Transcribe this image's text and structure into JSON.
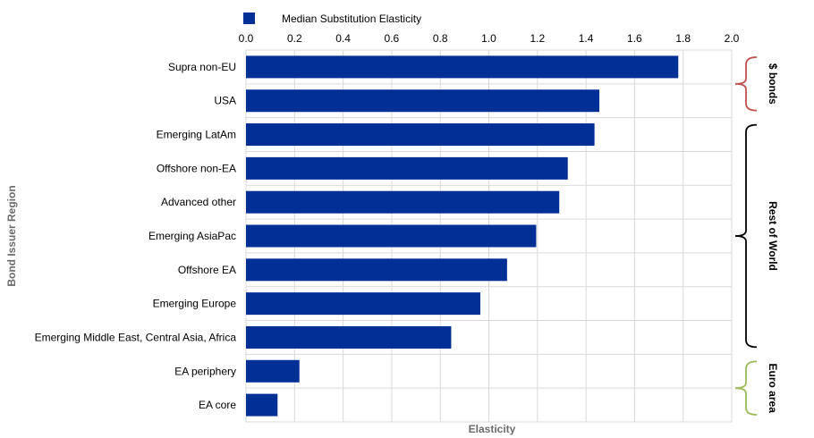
{
  "chart_data": {
    "type": "bar",
    "orientation": "horizontal",
    "xlabel": "Elasticity",
    "ylabel": "Bond Issuer Region",
    "xlim": [
      0,
      2.0
    ],
    "x_ticks": [
      "0.0",
      "0.2",
      "0.4",
      "0.6",
      "0.8",
      "1.0",
      "1.2",
      "1.4",
      "1.6",
      "1.8",
      "2.0"
    ],
    "x_axis_position": "top",
    "grid": true,
    "legend_placement": "top",
    "categories": [
      "Supra non-EU",
      "USA",
      "Emerging LatAm",
      "Offshore non-EA",
      "Advanced other",
      "Emerging AsiaPac",
      "Offshore EA",
      "Emerging Europe",
      "Emerging Middle East, Central Asia, Africa",
      "EA periphery",
      "EA core"
    ],
    "series": [
      {
        "name": "Median Substitution Elasticity",
        "color": "#002f96",
        "values": [
          1.78,
          1.455,
          1.435,
          1.325,
          1.29,
          1.195,
          1.075,
          0.965,
          0.845,
          0.22,
          0.13
        ]
      }
    ],
    "groups": [
      {
        "label": "$ bonds",
        "start": 0,
        "end": 1,
        "color": "#c0504d"
      },
      {
        "label": "Rest of World",
        "start": 2,
        "end": 8,
        "color": "#000000"
      },
      {
        "label": "Euro area",
        "start": 9,
        "end": 10,
        "color": "#9bbb59"
      }
    ]
  }
}
